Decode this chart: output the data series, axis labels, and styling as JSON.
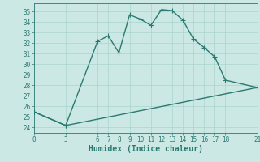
{
  "xlabel": "Humidex (Indice chaleur)",
  "bg_color": "#cce8e4",
  "grid_color": "#aad4ce",
  "line_color": "#2a7a72",
  "xlim": [
    0,
    21
  ],
  "ylim": [
    23.5,
    35.8
  ],
  "yticks": [
    24,
    25,
    26,
    27,
    28,
    29,
    30,
    31,
    32,
    33,
    34,
    35
  ],
  "xticks": [
    0,
    3,
    6,
    7,
    8,
    9,
    10,
    11,
    12,
    13,
    14,
    15,
    16,
    17,
    18,
    21
  ],
  "curve1_x": [
    0,
    3,
    6,
    7,
    8,
    9,
    10,
    11,
    12,
    13,
    14,
    15,
    16,
    17,
    18,
    21
  ],
  "curve1_y": [
    25.5,
    24.2,
    32.2,
    32.7,
    31.1,
    34.7,
    34.3,
    33.7,
    35.2,
    35.1,
    34.2,
    32.4,
    31.6,
    30.7,
    28.5,
    27.8
  ],
  "curve2_x": [
    0,
    3,
    21
  ],
  "curve2_y": [
    25.5,
    24.2,
    27.8
  ],
  "markersize": 2.5,
  "linewidth": 1.0,
  "xlabel_fontsize": 7,
  "tick_fontsize": 5.5
}
